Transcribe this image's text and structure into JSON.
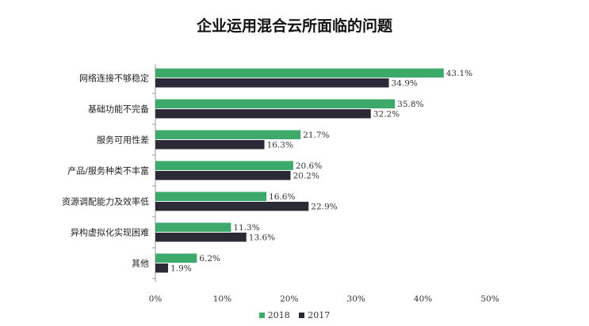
{
  "chart_data": {
    "type": "bar",
    "orientation": "horizontal",
    "title": "企业运用混合云所面临的问题",
    "categories": [
      "网络连接不够稳定",
      "基础功能不完备",
      "服务可用性差",
      "产品/服务种类不丰富",
      "资源调配能力及效率低",
      "异构虚拟化实现困难",
      "其他"
    ],
    "series": [
      {
        "name": "2018",
        "color": "#3daa6b",
        "values": [
          43.1,
          35.8,
          21.7,
          20.6,
          16.6,
          11.3,
          6.2
        ],
        "labels": [
          "43.1%",
          "35.8%",
          "21.7%",
          "20.6%",
          "16.6%",
          "11.3%",
          "6.2%"
        ]
      },
      {
        "name": "2017",
        "color": "#2b2a36",
        "values": [
          34.9,
          32.2,
          16.3,
          20.2,
          22.9,
          13.6,
          1.9
        ],
        "labels": [
          "34.9%",
          "32.2%",
          "16.3%",
          "20.2%",
          "22.9%",
          "13.6%",
          "1.9%"
        ]
      }
    ],
    "xlim": [
      0,
      50
    ],
    "ticks": [
      0,
      10,
      20,
      30,
      40,
      50
    ],
    "tick_labels": [
      "0%",
      "10%",
      "20%",
      "30%",
      "40%",
      "50%"
    ],
    "grid": false,
    "legend_position": "bottom-center"
  }
}
